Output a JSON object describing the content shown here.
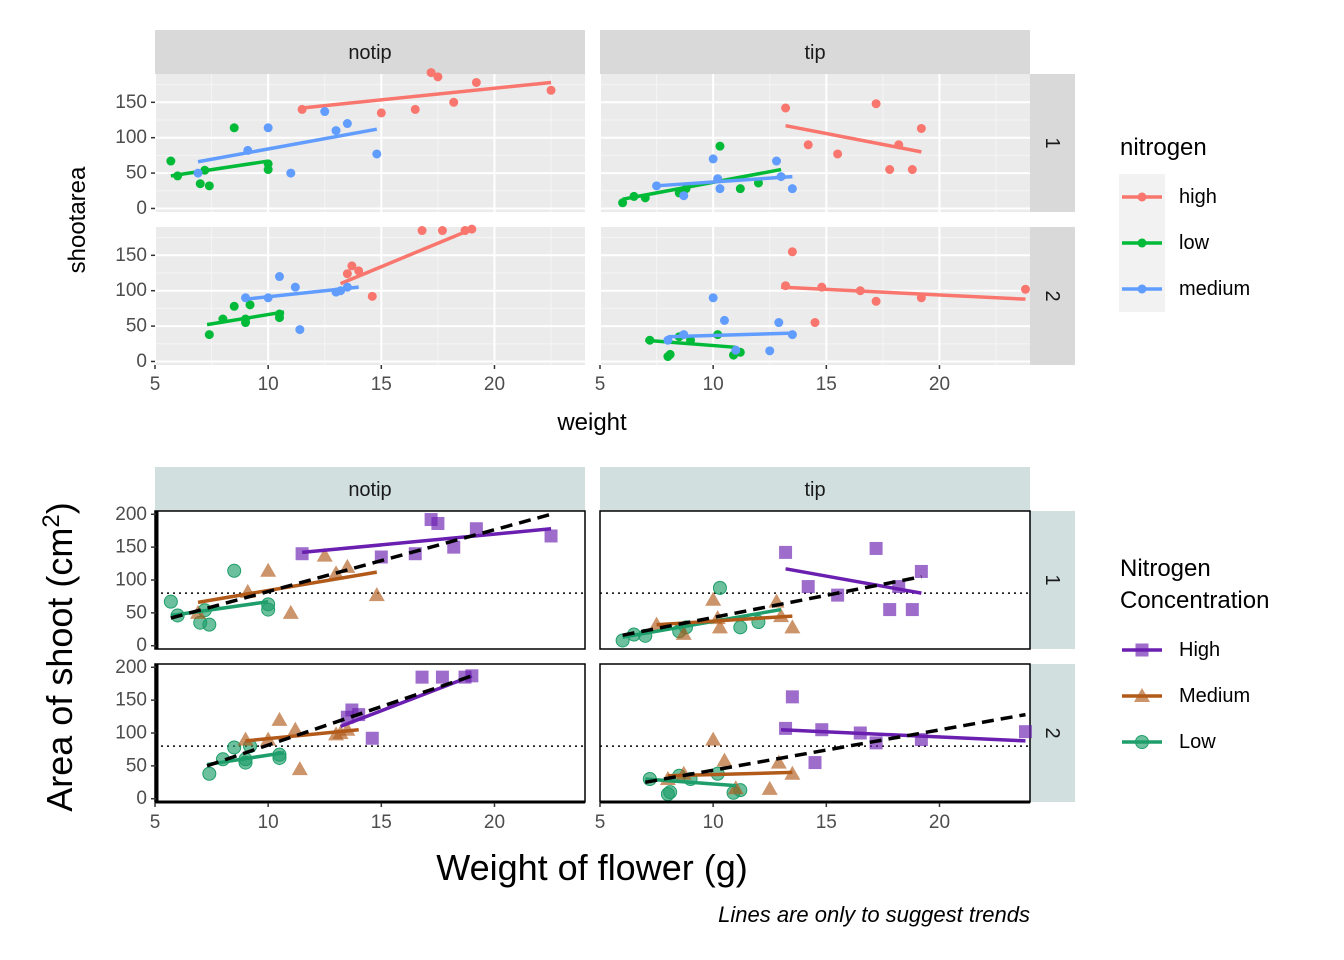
{
  "chart_data": [
    {
      "type": "scatter",
      "title": "",
      "xlabel": "weight",
      "ylabel": "shootarea",
      "xlim": [
        5,
        24
      ],
      "ylim": [
        -5,
        190
      ],
      "x_ticks": [
        5,
        10,
        15,
        20
      ],
      "y_ticks": [
        0,
        50,
        100,
        150
      ],
      "columns": [
        "notip",
        "tip"
      ],
      "rows": [
        "1",
        "2"
      ],
      "grid": true,
      "legend": {
        "title": "nitrogen",
        "placement": "right"
      },
      "series_meta": [
        {
          "name": "high",
          "color": "#F8766D"
        },
        {
          "name": "low",
          "color": "#00BA38"
        },
        {
          "name": "medium",
          "color": "#619CFF"
        }
      ],
      "panels": [
        {
          "col": "notip",
          "row": "1",
          "series": [
            {
              "name": "high",
              "points": [
                [
                  11.5,
                  140
                ],
                [
                  15,
                  135
                ],
                [
                  16.5,
                  140
                ],
                [
                  17.2,
                  192
                ],
                [
                  17.5,
                  186
                ],
                [
                  18.2,
                  150
                ],
                [
                  19.2,
                  178
                ],
                [
                  22.5,
                  167
                ]
              ],
              "trend": [
                [
                  11.5,
                  142
                ],
                [
                  22.5,
                  178
                ]
              ]
            },
            {
              "name": "low",
              "points": [
                [
                  5.7,
                  67
                ],
                [
                  6,
                  46
                ],
                [
                  7,
                  35
                ],
                [
                  7.2,
                  54
                ],
                [
                  7.4,
                  32
                ],
                [
                  8.5,
                  114
                ],
                [
                  10,
                  55
                ],
                [
                  10,
                  63
                ]
              ],
              "trend": [
                [
                  5.7,
                  46
                ],
                [
                  10,
                  67
                ]
              ]
            },
            {
              "name": "medium",
              "points": [
                [
                  6.9,
                  50
                ],
                [
                  9.1,
                  82
                ],
                [
                  10,
                  114
                ],
                [
                  11,
                  50
                ],
                [
                  12.5,
                  137
                ],
                [
                  13,
                  110
                ],
                [
                  13.5,
                  120
                ],
                [
                  14.8,
                  77
                ]
              ],
              "trend": [
                [
                  6.9,
                  66
                ],
                [
                  14.8,
                  112
                ]
              ]
            }
          ]
        },
        {
          "col": "tip",
          "row": "1",
          "series": [
            {
              "name": "high",
              "points": [
                [
                  13.2,
                  142
                ],
                [
                  14.2,
                  90
                ],
                [
                  15.5,
                  77
                ],
                [
                  17.2,
                  148
                ],
                [
                  17.8,
                  55
                ],
                [
                  18.2,
                  90
                ],
                [
                  18.8,
                  55
                ],
                [
                  19.2,
                  113
                ]
              ],
              "trend": [
                [
                  13.2,
                  117
                ],
                [
                  19.2,
                  80
                ]
              ]
            },
            {
              "name": "low",
              "points": [
                [
                  6,
                  8
                ],
                [
                  6.5,
                  17
                ],
                [
                  7,
                  15
                ],
                [
                  8.5,
                  22
                ],
                [
                  8.8,
                  28
                ],
                [
                  10.3,
                  88
                ],
                [
                  11.2,
                  28
                ],
                [
                  12,
                  36
                ]
              ],
              "trend": [
                [
                  6,
                  13
                ],
                [
                  13,
                  55
                ]
              ]
            },
            {
              "name": "medium",
              "points": [
                [
                  7.5,
                  32
                ],
                [
                  8.7,
                  18
                ],
                [
                  10,
                  70
                ],
                [
                  10.2,
                  42
                ],
                [
                  10.3,
                  28
                ],
                [
                  12.8,
                  67
                ],
                [
                  13,
                  45
                ],
                [
                  13.5,
                  28
                ]
              ],
              "trend": [
                [
                  7.5,
                  32
                ],
                [
                  13.5,
                  45
                ]
              ]
            }
          ]
        },
        {
          "col": "notip",
          "row": "2",
          "series": [
            {
              "name": "high",
              "points": [
                [
                  13.5,
                  124
                ],
                [
                  13.7,
                  135
                ],
                [
                  14,
                  128
                ],
                [
                  14.6,
                  92
                ],
                [
                  16.8,
                  185
                ],
                [
                  17.7,
                  185
                ],
                [
                  18.7,
                  185
                ],
                [
                  19,
                  187
                ]
              ],
              "trend": [
                [
                  13.2,
                  110
                ],
                [
                  19,
                  187
                ]
              ]
            },
            {
              "name": "low",
              "points": [
                [
                  7.4,
                  38
                ],
                [
                  8,
                  60
                ],
                [
                  8.5,
                  78
                ],
                [
                  9,
                  55
                ],
                [
                  9,
                  60
                ],
                [
                  9.2,
                  80
                ],
                [
                  10.5,
                  62
                ],
                [
                  10.5,
                  67
                ]
              ],
              "trend": [
                [
                  7.3,
                  52
                ],
                [
                  10.7,
                  70
                ]
              ]
            },
            {
              "name": "medium",
              "points": [
                [
                  9,
                  90
                ],
                [
                  10,
                  90
                ],
                [
                  10.5,
                  120
                ],
                [
                  11.2,
                  105
                ],
                [
                  11.4,
                  45
                ],
                [
                  13,
                  98
                ],
                [
                  13.2,
                  100
                ],
                [
                  13.5,
                  105
                ]
              ],
              "trend": [
                [
                  9,
                  88
                ],
                [
                  14,
                  105
                ]
              ]
            }
          ]
        },
        {
          "col": "tip",
          "row": "2",
          "series": [
            {
              "name": "high",
              "points": [
                [
                  13.2,
                  107
                ],
                [
                  13.5,
                  155
                ],
                [
                  14.5,
                  55
                ],
                [
                  14.8,
                  105
                ],
                [
                  16.5,
                  100
                ],
                [
                  17.2,
                  85
                ],
                [
                  19.2,
                  90
                ],
                [
                  23.8,
                  102
                ]
              ],
              "trend": [
                [
                  13,
                  105
                ],
                [
                  23.8,
                  88
                ]
              ]
            },
            {
              "name": "low",
              "points": [
                [
                  7.2,
                  30
                ],
                [
                  8,
                  7
                ],
                [
                  8.1,
                  10
                ],
                [
                  8.5,
                  35
                ],
                [
                  9,
                  30
                ],
                [
                  10.2,
                  38
                ],
                [
                  10.9,
                  9
                ],
                [
                  11.2,
                  13
                ]
              ],
              "trend": [
                [
                  7,
                  30
                ],
                [
                  11,
                  20
                ]
              ]
            },
            {
              "name": "medium",
              "points": [
                [
                  8,
                  30
                ],
                [
                  8.7,
                  38
                ],
                [
                  10,
                  90
                ],
                [
                  10.5,
                  58
                ],
                [
                  11,
                  16
                ],
                [
                  12.5,
                  15
                ],
                [
                  12.9,
                  55
                ],
                [
                  13.5,
                  38
                ]
              ],
              "trend": [
                [
                  8,
                  35
                ],
                [
                  13.5,
                  40
                ]
              ]
            }
          ]
        }
      ]
    },
    {
      "type": "scatter",
      "title": "",
      "xlabel": "Weight of flower (g)",
      "ylabel": "Area of shoot (cm",
      "ylabel_superscript": "2",
      "ylabel_close": ")",
      "caption": "Lines are only to suggest trends",
      "xlim": [
        5,
        24
      ],
      "ylim": [
        -5,
        205
      ],
      "x_ticks": [
        5,
        10,
        15,
        20
      ],
      "y_ticks": [
        0,
        50,
        100,
        150,
        200
      ],
      "reference_line_y": 80,
      "columns": [
        "notip",
        "tip"
      ],
      "rows": [
        "1",
        "2"
      ],
      "grid": false,
      "legend": {
        "title_line1": "Nitrogen",
        "title_line2": "Concentration",
        "placement": "right"
      },
      "series_meta": [
        {
          "name": "High",
          "source": "high",
          "color": "#6A1FB0",
          "shape": "square"
        },
        {
          "name": "Medium",
          "source": "medium",
          "color": "#B15A1A",
          "shape": "triangle"
        },
        {
          "name": "Low",
          "source": "low",
          "color": "#1E9E6A",
          "shape": "circle"
        }
      ],
      "overall_trends": [
        {
          "col": "notip",
          "row": "1",
          "line": [
            [
              5.7,
              42
            ],
            [
              22.5,
              200
            ]
          ]
        },
        {
          "col": "tip",
          "row": "1",
          "line": [
            [
              6,
              16
            ],
            [
              19.2,
              105
            ]
          ]
        },
        {
          "col": "notip",
          "row": "2",
          "line": [
            [
              7.3,
              50
            ],
            [
              19,
              187
            ]
          ]
        },
        {
          "col": "tip",
          "row": "2",
          "line": [
            [
              7,
              25
            ],
            [
              23.8,
              128
            ]
          ]
        }
      ]
    }
  ]
}
